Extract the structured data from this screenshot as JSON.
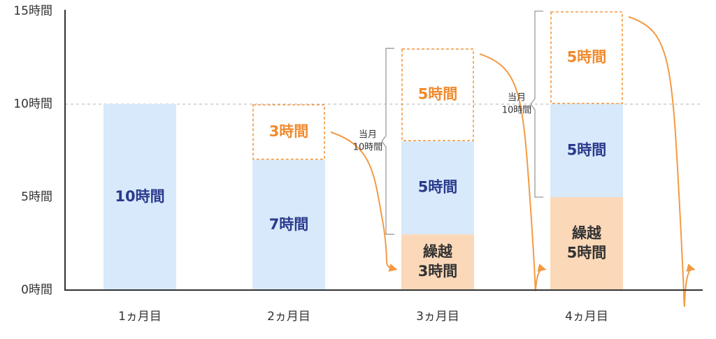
{
  "chart_data": {
    "type": "bar",
    "categories": [
      "1ヵ月目",
      "2ヵ月目",
      "3ヵ月目",
      "4ヵ月目"
    ],
    "ylim": [
      0,
      15
    ],
    "y_ticks": [
      {
        "value": 0,
        "label": "0時間"
      },
      {
        "value": 5,
        "label": "5時間"
      },
      {
        "value": 10,
        "label": "10時間"
      },
      {
        "value": 15,
        "label": "15時間"
      }
    ],
    "reference_line": {
      "value": 10
    },
    "series": [
      {
        "values": [
          0,
          0,
          3,
          5
        ],
        "color": "#fbd9b8",
        "labels": [
          "",
          "",
          "繰越\n3時間",
          "繰越\n5時間"
        ],
        "label_color": "#333333"
      },
      {
        "values": [
          10,
          7,
          5,
          5
        ],
        "color": "#d7e9fb",
        "labels": [
          "10時間",
          "7時間",
          "5時間",
          "5時間"
        ],
        "label_color": "#2b3a8c"
      },
      {
        "values": [
          0,
          3,
          5,
          5
        ],
        "dashed": true,
        "color": "#f39a43",
        "labels": [
          "",
          "3時間",
          "5時間",
          "5時間"
        ],
        "label_color": "#f08a2c"
      }
    ],
    "brackets": [
      {
        "category_index": 2,
        "from": 3,
        "to": 13,
        "label": "当月\n10時間"
      },
      {
        "category_index": 3,
        "from": 5,
        "to": 15,
        "label": "当月\n10時間"
      }
    ],
    "carry_over_arrows": [
      {
        "from_category_index": 1
      },
      {
        "from_category_index": 2
      },
      {
        "from_category_index": 3
      }
    ],
    "grid": false,
    "legend": "none"
  }
}
